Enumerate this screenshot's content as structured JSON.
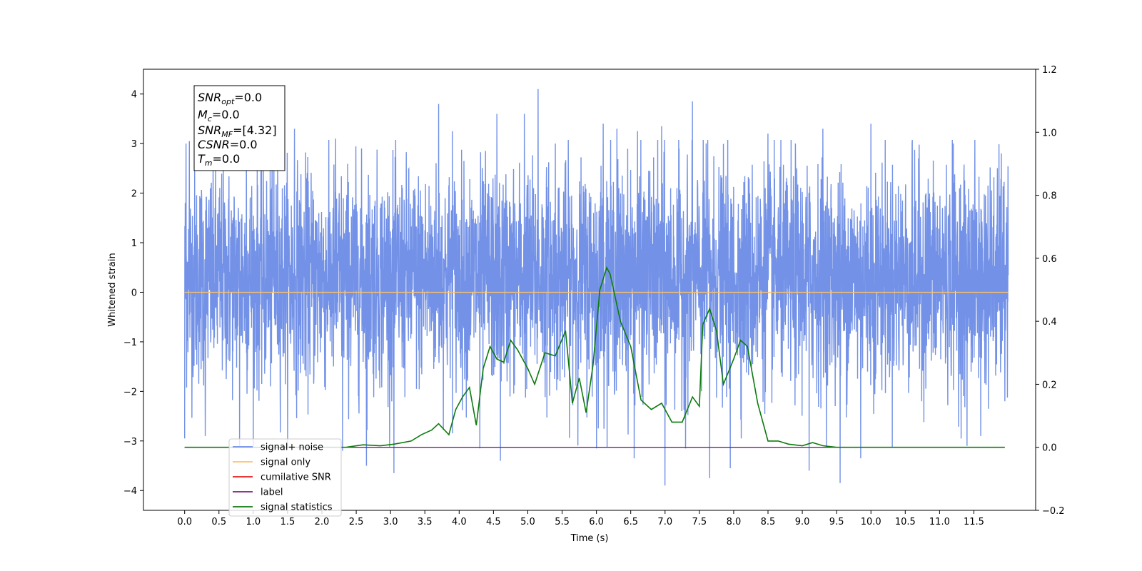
{
  "chart_data": {
    "type": "line",
    "xlabel": "Time (s)",
    "ylabel_left": "Whitened strain",
    "xlim": [
      -0.6,
      12.4
    ],
    "ylim_left": [
      -4.4,
      4.5
    ],
    "ylim_right": [
      -0.2,
      1.2
    ],
    "x_ticks": [
      "0.0",
      "0.5",
      "1.0",
      "1.5",
      "2.0",
      "2.5",
      "3.0",
      "3.5",
      "4.0",
      "4.5",
      "5.0",
      "5.5",
      "6.0",
      "6.5",
      "7.0",
      "7.5",
      "8.0",
      "8.5",
      "9.0",
      "9.5",
      "10.0",
      "10.5",
      "11.0",
      "11.5"
    ],
    "y_ticks_left": [
      "4",
      "3",
      "2",
      "1",
      "0",
      "−1",
      "−2",
      "−3",
      "−4"
    ],
    "y_ticks_right": [
      "1.2",
      "1.0",
      "0.8",
      "0.6",
      "0.4",
      "0.2",
      "0.0",
      "−0.2"
    ],
    "grid": false,
    "legend_position": "lower-left",
    "legend": [
      {
        "label": "signal+ noise",
        "color": "#6c8ce6"
      },
      {
        "label": "signal only",
        "color": "#ffc060"
      },
      {
        "label": "cumilative SNR",
        "color": "#e51c1c"
      },
      {
        "label": "label",
        "color": "#7b1b7b"
      },
      {
        "label": "signal statistics",
        "color": "#0d7a0d"
      }
    ],
    "info_box": {
      "snr_opt": {
        "base": "SNR",
        "sub": "opt",
        "value": "=0.0"
      },
      "mc": {
        "base": "M",
        "sub": "c",
        "value": "=0.0"
      },
      "snr_mf": {
        "base": "SNR",
        "sub": "MF",
        "value": "=[4.32]"
      },
      "csnr": {
        "base": "CSNR",
        "sub": "",
        "value": "=0.0"
      },
      "tm": {
        "base": "T",
        "sub": "m",
        "value": "=0.0"
      }
    },
    "series": [
      {
        "name": "signal+ noise",
        "axis": "left",
        "color": "#6c8ce6",
        "x_range": [
          0.0,
          12.0
        ],
        "typical_range": [
          -2.1,
          2.7
        ],
        "min": -3.9,
        "max": 4.1,
        "peaks_up": [
          [
            0.02,
            3.0
          ],
          [
            0.07,
            3.05
          ],
          [
            0.3,
            2.6
          ],
          [
            0.9,
            3.3
          ],
          [
            1.3,
            3.25
          ],
          [
            1.6,
            3.3
          ],
          [
            2.2,
            3.1
          ],
          [
            3.7,
            3.8
          ],
          [
            3.9,
            3.25
          ],
          [
            4.3,
            3.55
          ],
          [
            4.55,
            3.6
          ],
          [
            4.95,
            3.6
          ],
          [
            5.15,
            4.1
          ],
          [
            5.4,
            3.0
          ],
          [
            6.1,
            3.4
          ],
          [
            6.3,
            3.3
          ],
          [
            6.6,
            3.25
          ],
          [
            6.95,
            3.35
          ],
          [
            7.4,
            3.85
          ],
          [
            7.6,
            3.0
          ],
          [
            8.5,
            3.2
          ],
          [
            8.9,
            3.0
          ],
          [
            9.3,
            3.3
          ],
          [
            10.0,
            3.4
          ],
          [
            10.6,
            3.0
          ],
          [
            11.2,
            3.0
          ],
          [
            11.6,
            3.35
          ],
          [
            11.9,
            2.8
          ]
        ],
        "peaks_down": [
          [
            0.0,
            -2.95
          ],
          [
            0.3,
            -2.9
          ],
          [
            0.8,
            -3.1
          ],
          [
            2.3,
            -3.2
          ],
          [
            2.65,
            -3.5
          ],
          [
            3.05,
            -3.65
          ],
          [
            4.3,
            -3.15
          ],
          [
            4.6,
            -3.4
          ],
          [
            6.0,
            -3.15
          ],
          [
            6.55,
            -3.35
          ],
          [
            7.0,
            -3.9
          ],
          [
            7.3,
            -3.15
          ],
          [
            7.65,
            -3.75
          ],
          [
            7.95,
            -3.55
          ],
          [
            9.1,
            -3.6
          ],
          [
            9.55,
            -3.85
          ],
          [
            9.85,
            -3.35
          ],
          [
            11.4,
            -3.1
          ],
          [
            11.6,
            -2.9
          ],
          [
            11.95,
            -2.2
          ]
        ]
      },
      {
        "name": "signal only",
        "axis": "left",
        "color": "#ffc060",
        "x": [
          0.0,
          12.0
        ],
        "y": [
          0.0,
          0.0
        ]
      },
      {
        "name": "label",
        "axis": "right",
        "color": "#7b1b7b",
        "x": [
          0.0,
          11.95
        ],
        "y": [
          0.0,
          0.0
        ]
      },
      {
        "name": "signal statistics",
        "axis": "right",
        "color": "#0d7a0d",
        "x": [
          0.0,
          1.0,
          2.0,
          2.35,
          2.6,
          2.85,
          3.05,
          3.3,
          3.45,
          3.6,
          3.7,
          3.85,
          3.95,
          4.05,
          4.15,
          4.25,
          4.35,
          4.45,
          4.55,
          4.65,
          4.75,
          4.85,
          5.0,
          5.1,
          5.25,
          5.4,
          5.55,
          5.65,
          5.75,
          5.85,
          5.95,
          6.05,
          6.15,
          6.2,
          6.35,
          6.5,
          6.65,
          6.8,
          6.95,
          7.1,
          7.25,
          7.4,
          7.5,
          7.55,
          7.65,
          7.75,
          7.85,
          8.0,
          8.1,
          8.2,
          8.35,
          8.5,
          8.65,
          8.8,
          9.0,
          9.15,
          9.3,
          9.5,
          9.7,
          10.0,
          11.0,
          11.95
        ],
        "y": [
          0.0,
          0.0,
          0.0,
          0.0,
          0.008,
          0.005,
          0.01,
          0.02,
          0.04,
          0.055,
          0.075,
          0.04,
          0.12,
          0.16,
          0.19,
          0.07,
          0.25,
          0.32,
          0.28,
          0.27,
          0.34,
          0.31,
          0.25,
          0.2,
          0.3,
          0.29,
          0.37,
          0.14,
          0.22,
          0.11,
          0.26,
          0.5,
          0.57,
          0.55,
          0.4,
          0.32,
          0.15,
          0.12,
          0.14,
          0.08,
          0.08,
          0.16,
          0.13,
          0.39,
          0.44,
          0.37,
          0.2,
          0.28,
          0.34,
          0.32,
          0.14,
          0.02,
          0.02,
          0.01,
          0.005,
          0.015,
          0.005,
          0.0,
          0.0,
          0.0,
          0.0,
          0.0
        ]
      }
    ]
  }
}
